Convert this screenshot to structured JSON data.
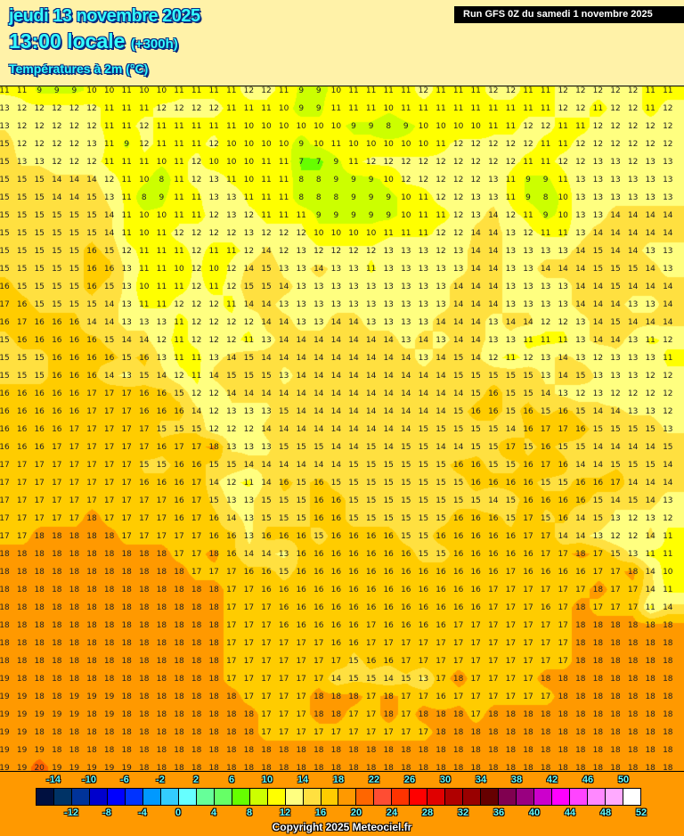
{
  "header": {
    "date": "jeudi 13 novembre 2025",
    "time": "13:00 locale",
    "lead": "(+300h)",
    "variable": "Températures à 2m (°C)",
    "run": "Run GFS 0Z du samedi 1 novembre 2025"
  },
  "footer": {
    "copyright": "Copyright 2025 Meteociel.fr"
  },
  "legend": {
    "ticks_top": [
      "-14",
      "-10",
      "-6",
      "-2",
      "2",
      "6",
      "10",
      "14",
      "18",
      "22",
      "26",
      "30",
      "34",
      "38",
      "42",
      "46",
      "50"
    ],
    "ticks_bottom": [
      "-12",
      "-8",
      "-4",
      "0",
      "4",
      "8",
      "12",
      "16",
      "20",
      "24",
      "28",
      "32",
      "36",
      "40",
      "44",
      "48",
      "52"
    ],
    "band_start": -16,
    "band_step": 2,
    "colors": [
      "#001040",
      "#003366",
      "#003399",
      "#0000cc",
      "#0000ff",
      "#0033ff",
      "#0099ff",
      "#33ccff",
      "#66ffff",
      "#66ff99",
      "#66ff66",
      "#66ff00",
      "#ccff00",
      "#ffff00",
      "#ffff80",
      "#ffe040",
      "#ffcc00",
      "#ff9900",
      "#ff6600",
      "#ff4d33",
      "#ff3300",
      "#ff0000",
      "#e00000",
      "#b00000",
      "#990000",
      "#660000",
      "#800050",
      "#990080",
      "#cc00cc",
      "#ff00ff",
      "#ff44ff",
      "#ff88ff",
      "#ffaaff",
      "#ffffff"
    ]
  },
  "temperature_grid": [
    [
      11,
      11,
      9,
      9,
      9,
      10,
      10,
      11,
      10,
      10,
      11,
      11,
      11,
      11,
      12,
      12,
      11,
      9,
      9,
      10,
      11,
      11,
      11,
      11,
      12,
      11,
      11,
      11,
      12,
      12,
      11,
      11,
      12,
      12,
      12,
      12,
      12,
      11,
      11
    ],
    [
      13,
      12,
      12,
      12,
      12,
      12,
      11,
      11,
      11,
      12,
      12,
      12,
      12,
      11,
      11,
      11,
      10,
      9,
      9,
      11,
      11,
      11,
      10,
      11,
      11,
      11,
      11,
      11,
      11,
      11,
      11,
      11,
      12,
      12,
      11,
      12,
      12,
      11,
      12
    ],
    [
      13,
      12,
      12,
      12,
      12,
      12,
      11,
      11,
      12,
      11,
      11,
      11,
      11,
      11,
      10,
      10,
      10,
      10,
      10,
      10,
      9,
      9,
      8,
      9,
      10,
      10,
      10,
      10,
      11,
      11,
      12,
      12,
      11,
      11,
      12,
      12,
      12,
      12,
      12
    ],
    [
      15,
      12,
      12,
      12,
      12,
      13,
      11,
      9,
      12,
      11,
      11,
      11,
      12,
      10,
      10,
      10,
      10,
      9,
      10,
      11,
      10,
      10,
      10,
      10,
      10,
      11,
      12,
      12,
      12,
      12,
      12,
      11,
      11,
      12,
      12,
      12,
      12,
      12,
      12
    ],
    [
      15,
      13,
      13,
      12,
      12,
      12,
      11,
      11,
      11,
      10,
      11,
      12,
      10,
      10,
      10,
      11,
      11,
      7,
      7,
      9,
      11,
      12,
      12,
      12,
      12,
      12,
      12,
      12,
      12,
      12,
      11,
      11,
      12,
      12,
      13,
      13,
      12,
      13,
      13
    ],
    [
      15,
      15,
      15,
      14,
      14,
      14,
      12,
      11,
      10,
      8,
      11,
      12,
      13,
      11,
      10,
      11,
      11,
      8,
      8,
      9,
      9,
      9,
      10,
      12,
      12,
      12,
      12,
      12,
      13,
      11,
      9,
      9,
      11,
      13,
      13,
      13,
      13,
      13,
      13
    ],
    [
      15,
      15,
      15,
      14,
      14,
      15,
      13,
      11,
      8,
      9,
      11,
      11,
      13,
      13,
      11,
      11,
      11,
      8,
      8,
      8,
      9,
      9,
      9,
      10,
      11,
      12,
      12,
      13,
      13,
      11,
      9,
      8,
      10,
      13,
      13,
      13,
      13,
      13,
      13
    ],
    [
      15,
      15,
      15,
      15,
      15,
      15,
      14,
      11,
      10,
      10,
      11,
      11,
      12,
      13,
      12,
      11,
      11,
      11,
      9,
      9,
      9,
      9,
      9,
      10,
      11,
      11,
      12,
      13,
      14,
      12,
      11,
      9,
      10,
      13,
      13,
      14,
      14,
      14,
      14
    ],
    [
      15,
      15,
      15,
      15,
      15,
      15,
      14,
      11,
      10,
      11,
      12,
      12,
      12,
      12,
      13,
      12,
      12,
      12,
      10,
      10,
      10,
      10,
      11,
      11,
      11,
      12,
      12,
      14,
      14,
      13,
      12,
      11,
      11,
      13,
      14,
      14,
      14,
      14,
      14
    ],
    [
      15,
      15,
      15,
      15,
      15,
      16,
      15,
      12,
      11,
      11,
      11,
      12,
      11,
      11,
      12,
      14,
      12,
      13,
      12,
      12,
      12,
      12,
      13,
      13,
      13,
      12,
      13,
      14,
      14,
      13,
      13,
      13,
      13,
      14,
      15,
      14,
      14,
      13,
      13
    ],
    [
      15,
      15,
      15,
      15,
      15,
      16,
      16,
      13,
      11,
      11,
      10,
      12,
      10,
      12,
      14,
      15,
      13,
      13,
      14,
      13,
      13,
      11,
      13,
      13,
      13,
      13,
      13,
      14,
      14,
      13,
      13,
      14,
      14,
      14,
      15,
      15,
      15,
      14,
      13
    ],
    [
      16,
      15,
      15,
      15,
      15,
      16,
      15,
      13,
      10,
      11,
      11,
      12,
      11,
      12,
      15,
      15,
      14,
      13,
      13,
      13,
      13,
      13,
      13,
      13,
      13,
      13,
      14,
      14,
      14,
      13,
      13,
      13,
      13,
      14,
      14,
      15,
      14,
      14,
      14
    ],
    [
      17,
      16,
      15,
      15,
      15,
      15,
      14,
      13,
      11,
      11,
      12,
      12,
      12,
      11,
      14,
      14,
      13,
      13,
      13,
      13,
      13,
      13,
      13,
      13,
      13,
      13,
      14,
      14,
      14,
      13,
      13,
      13,
      13,
      14,
      14,
      14,
      13,
      13,
      14
    ],
    [
      16,
      17,
      16,
      16,
      16,
      14,
      14,
      13,
      13,
      13,
      11,
      12,
      12,
      12,
      12,
      14,
      14,
      13,
      13,
      14,
      14,
      13,
      13,
      13,
      13,
      14,
      14,
      14,
      13,
      14,
      14,
      12,
      12,
      13,
      14,
      15,
      14,
      14,
      14
    ],
    [
      15,
      16,
      16,
      16,
      16,
      16,
      15,
      14,
      14,
      12,
      11,
      12,
      12,
      12,
      11,
      13,
      14,
      14,
      14,
      14,
      14,
      14,
      14,
      13,
      14,
      13,
      14,
      14,
      13,
      13,
      11,
      11,
      11,
      13,
      14,
      14,
      13,
      11,
      12
    ],
    [
      15,
      15,
      15,
      16,
      16,
      16,
      16,
      15,
      16,
      13,
      11,
      11,
      13,
      14,
      15,
      14,
      14,
      14,
      14,
      14,
      14,
      14,
      14,
      14,
      13,
      14,
      15,
      14,
      12,
      11,
      12,
      13,
      14,
      13,
      12,
      13,
      13,
      13,
      11
    ],
    [
      15,
      15,
      15,
      16,
      16,
      16,
      14,
      13,
      15,
      14,
      12,
      11,
      14,
      15,
      15,
      15,
      13,
      14,
      14,
      14,
      14,
      14,
      14,
      14,
      14,
      14,
      15,
      15,
      15,
      15,
      15,
      13,
      14,
      15,
      13,
      13,
      13,
      12,
      12
    ],
    [
      16,
      16,
      16,
      16,
      16,
      17,
      17,
      17,
      16,
      16,
      15,
      12,
      12,
      14,
      14,
      14,
      14,
      14,
      14,
      14,
      14,
      14,
      14,
      14,
      14,
      14,
      14,
      15,
      16,
      15,
      15,
      14,
      13,
      12,
      13,
      12,
      12,
      12,
      12
    ],
    [
      16,
      16,
      16,
      16,
      16,
      17,
      17,
      17,
      16,
      16,
      16,
      14,
      12,
      13,
      13,
      13,
      15,
      14,
      14,
      14,
      14,
      14,
      14,
      14,
      14,
      14,
      15,
      16,
      16,
      15,
      16,
      15,
      16,
      15,
      14,
      14,
      13,
      13,
      12
    ],
    [
      16,
      16,
      16,
      16,
      17,
      17,
      17,
      17,
      17,
      15,
      15,
      15,
      12,
      12,
      12,
      14,
      14,
      14,
      14,
      14,
      14,
      14,
      14,
      14,
      15,
      15,
      15,
      15,
      15,
      14,
      16,
      17,
      17,
      16,
      15,
      15,
      15,
      15,
      13
    ],
    [
      16,
      16,
      16,
      17,
      17,
      17,
      17,
      17,
      17,
      16,
      17,
      17,
      18,
      13,
      13,
      13,
      15,
      15,
      15,
      14,
      14,
      15,
      14,
      15,
      15,
      14,
      14,
      15,
      15,
      17,
      15,
      16,
      15,
      15,
      14,
      14,
      14,
      14,
      15
    ],
    [
      17,
      17,
      17,
      17,
      17,
      17,
      17,
      17,
      15,
      15,
      16,
      16,
      15,
      15,
      14,
      14,
      14,
      14,
      14,
      14,
      15,
      15,
      15,
      15,
      15,
      15,
      16,
      16,
      15,
      15,
      16,
      17,
      16,
      14,
      14,
      15,
      15,
      15,
      14
    ],
    [
      17,
      17,
      17,
      17,
      17,
      17,
      17,
      17,
      16,
      16,
      16,
      17,
      14,
      12,
      11,
      14,
      16,
      15,
      16,
      15,
      15,
      15,
      15,
      15,
      15,
      15,
      15,
      16,
      16,
      16,
      16,
      15,
      15,
      16,
      16,
      17,
      14,
      14,
      14
    ],
    [
      17,
      17,
      17,
      17,
      17,
      17,
      17,
      17,
      17,
      17,
      16,
      17,
      15,
      13,
      13,
      15,
      15,
      15,
      16,
      16,
      15,
      15,
      15,
      15,
      15,
      15,
      15,
      15,
      14,
      15,
      16,
      16,
      16,
      16,
      15,
      14,
      15,
      14,
      13
    ],
    [
      17,
      17,
      17,
      17,
      17,
      18,
      17,
      17,
      17,
      17,
      16,
      17,
      16,
      14,
      13,
      15,
      15,
      15,
      16,
      16,
      15,
      15,
      15,
      15,
      15,
      15,
      16,
      16,
      16,
      15,
      17,
      15,
      16,
      14,
      15,
      13,
      12,
      13,
      12
    ],
    [
      17,
      17,
      18,
      18,
      18,
      18,
      18,
      17,
      17,
      17,
      17,
      17,
      16,
      16,
      13,
      16,
      16,
      16,
      15,
      16,
      16,
      16,
      16,
      15,
      15,
      16,
      16,
      16,
      16,
      16,
      17,
      17,
      14,
      14,
      13,
      12,
      12,
      14,
      11
    ],
    [
      18,
      18,
      18,
      18,
      18,
      18,
      18,
      18,
      18,
      18,
      17,
      17,
      18,
      16,
      14,
      14,
      13,
      16,
      16,
      16,
      16,
      16,
      16,
      16,
      15,
      15,
      16,
      16,
      16,
      16,
      16,
      17,
      17,
      18,
      17,
      15,
      13,
      11,
      11
    ],
    [
      18,
      18,
      18,
      18,
      18,
      18,
      18,
      18,
      18,
      18,
      18,
      17,
      17,
      17,
      16,
      16,
      15,
      16,
      16,
      16,
      16,
      16,
      16,
      16,
      16,
      16,
      16,
      16,
      16,
      17,
      16,
      16,
      16,
      16,
      17,
      17,
      18,
      14,
      10
    ],
    [
      18,
      18,
      18,
      18,
      18,
      18,
      18,
      18,
      18,
      18,
      18,
      18,
      18,
      17,
      17,
      16,
      16,
      16,
      16,
      16,
      16,
      16,
      16,
      16,
      16,
      16,
      16,
      16,
      17,
      17,
      17,
      17,
      17,
      17,
      18,
      17,
      17,
      14,
      11
    ],
    [
      18,
      18,
      18,
      18,
      18,
      18,
      18,
      18,
      18,
      18,
      18,
      18,
      18,
      17,
      17,
      17,
      16,
      16,
      16,
      16,
      16,
      16,
      16,
      16,
      16,
      16,
      16,
      16,
      17,
      17,
      17,
      16,
      17,
      18,
      17,
      17,
      17,
      11,
      14
    ],
    [
      18,
      18,
      18,
      18,
      18,
      18,
      18,
      18,
      18,
      18,
      18,
      18,
      18,
      17,
      17,
      17,
      16,
      16,
      16,
      16,
      16,
      17,
      16,
      16,
      16,
      16,
      17,
      17,
      17,
      17,
      17,
      17,
      17,
      18,
      18,
      18,
      18,
      18,
      18
    ],
    [
      18,
      18,
      18,
      18,
      18,
      18,
      18,
      18,
      18,
      18,
      18,
      18,
      18,
      17,
      17,
      17,
      17,
      17,
      17,
      16,
      16,
      17,
      17,
      17,
      17,
      17,
      17,
      17,
      17,
      17,
      17,
      17,
      17,
      18,
      18,
      18,
      18,
      18,
      18
    ],
    [
      18,
      18,
      18,
      18,
      18,
      18,
      18,
      18,
      18,
      18,
      18,
      18,
      18,
      17,
      17,
      17,
      17,
      17,
      17,
      17,
      15,
      16,
      16,
      17,
      17,
      17,
      17,
      17,
      17,
      17,
      17,
      17,
      17,
      18,
      18,
      18,
      18,
      18,
      18
    ],
    [
      19,
      18,
      18,
      18,
      18,
      18,
      18,
      18,
      18,
      18,
      18,
      18,
      18,
      17,
      17,
      17,
      17,
      17,
      17,
      14,
      15,
      15,
      14,
      15,
      13,
      17,
      18,
      17,
      17,
      17,
      17,
      18,
      18,
      18,
      18,
      18,
      18,
      18,
      18
    ],
    [
      19,
      19,
      18,
      18,
      19,
      19,
      19,
      18,
      18,
      18,
      18,
      18,
      18,
      18,
      17,
      17,
      17,
      17,
      18,
      18,
      18,
      17,
      18,
      17,
      17,
      16,
      17,
      17,
      17,
      17,
      17,
      17,
      18,
      18,
      18,
      18,
      18,
      18,
      18
    ],
    [
      19,
      19,
      19,
      19,
      19,
      18,
      19,
      18,
      18,
      18,
      18,
      18,
      18,
      18,
      18,
      17,
      17,
      17,
      18,
      18,
      17,
      17,
      18,
      17,
      18,
      18,
      18,
      17,
      18,
      18,
      18,
      18,
      18,
      18,
      18,
      18,
      18,
      18,
      18
    ],
    [
      19,
      19,
      18,
      18,
      18,
      18,
      18,
      18,
      18,
      18,
      18,
      18,
      18,
      18,
      18,
      17,
      17,
      17,
      17,
      17,
      17,
      17,
      17,
      17,
      17,
      18,
      18,
      18,
      18,
      18,
      18,
      18,
      18,
      18,
      18,
      18,
      18,
      18,
      18
    ],
    [
      19,
      19,
      19,
      18,
      18,
      18,
      18,
      18,
      18,
      18,
      18,
      18,
      18,
      18,
      18,
      18,
      18,
      18,
      18,
      18,
      18,
      18,
      18,
      18,
      18,
      18,
      18,
      18,
      18,
      18,
      18,
      18,
      18,
      18,
      18,
      18,
      18,
      18,
      18
    ],
    [
      19,
      19,
      20,
      19,
      19,
      19,
      19,
      19,
      18,
      18,
      18,
      18,
      18,
      18,
      18,
      18,
      18,
      18,
      18,
      18,
      18,
      18,
      18,
      18,
      18,
      18,
      18,
      18,
      18,
      18,
      18,
      18,
      18,
      18,
      18,
      18,
      18,
      18,
      18
    ]
  ]
}
